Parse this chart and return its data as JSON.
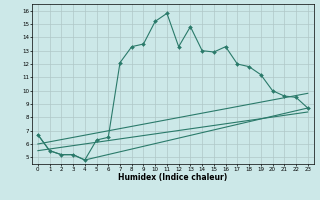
{
  "xlabel": "Humidex (Indice chaleur)",
  "bg_color": "#cce8e8",
  "grid_color": "#b0c8c8",
  "line_color": "#2a7a6a",
  "ylim": [
    4.5,
    16.5
  ],
  "xlim": [
    -0.5,
    23.5
  ],
  "yticks": [
    5,
    6,
    7,
    8,
    9,
    10,
    11,
    12,
    13,
    14,
    15,
    16
  ],
  "xticks": [
    0,
    1,
    2,
    3,
    4,
    5,
    6,
    7,
    8,
    9,
    10,
    11,
    12,
    13,
    14,
    15,
    16,
    17,
    18,
    19,
    20,
    21,
    22,
    23
  ],
  "line1_x": [
    0,
    1,
    2,
    3,
    4,
    5,
    6,
    7,
    8,
    9,
    10,
    11,
    12,
    13,
    14,
    15,
    16,
    17,
    18,
    19,
    20,
    21,
    22,
    23
  ],
  "line1_y": [
    6.7,
    5.5,
    5.2,
    5.2,
    4.8,
    6.3,
    6.5,
    12.1,
    13.3,
    13.5,
    15.2,
    15.8,
    13.3,
    14.8,
    13.0,
    12.9,
    13.3,
    12.0,
    11.8,
    11.2,
    10.0,
    9.6,
    9.5,
    8.7
  ],
  "line2_x": [
    0,
    1,
    2,
    3,
    4,
    23
  ],
  "line2_y": [
    6.7,
    5.5,
    5.2,
    5.2,
    4.8,
    8.7
  ],
  "line3_x": [
    0,
    23
  ],
  "line3_y": [
    5.5,
    8.4
  ],
  "line4_x": [
    0,
    23
  ],
  "line4_y": [
    6.0,
    9.8
  ]
}
